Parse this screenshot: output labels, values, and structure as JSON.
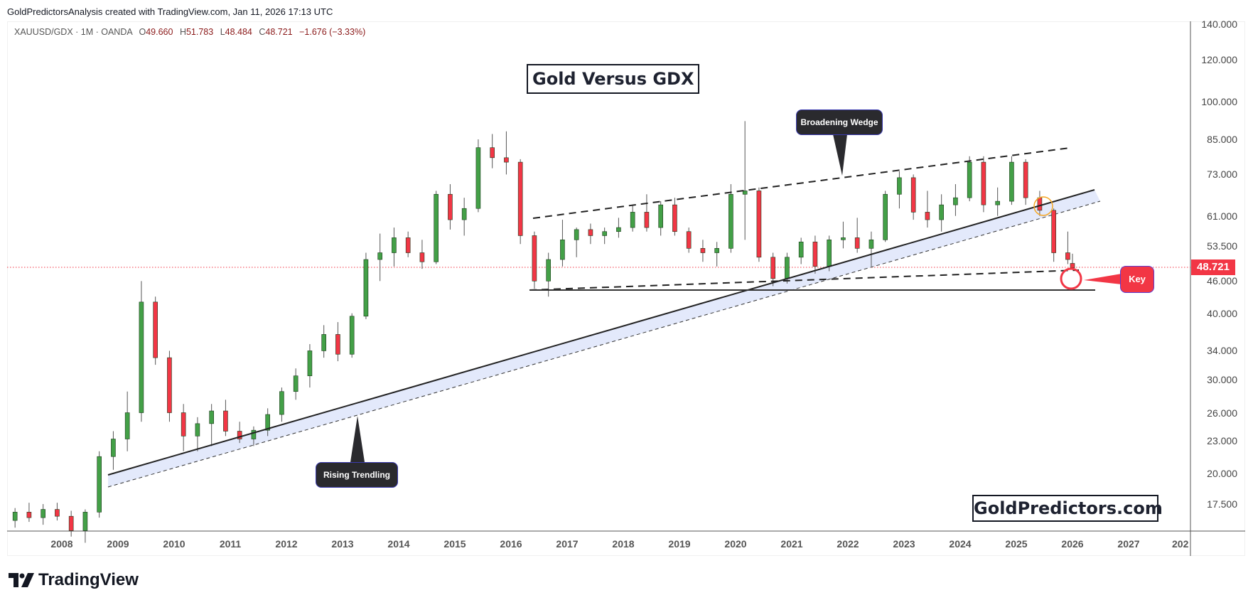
{
  "attribution": "GoldPredictorsAnalysis created with TradingView.com, Jan 11, 2026 17:13 UTC",
  "legend": {
    "symbol": "XAUUSD/GDX · 1M · OANDA",
    "open_label": "O",
    "open": "49.660",
    "high_label": "H",
    "high": "51.783",
    "low_label": "L",
    "low": "48.484",
    "close_label": "C",
    "close": "48.721",
    "change": "−1.676 (−3.33%)"
  },
  "annotations": {
    "title": "Gold Versus GDX",
    "brand": "GoldPredictors.com",
    "broadening_wedge": "Broadening Wedge",
    "rising_trendline": "Rising Trendling",
    "key": "Key"
  },
  "price_axis": {
    "labels": [
      "140.000",
      "120.000",
      "100.000",
      "85.000",
      "73.000",
      "61.000",
      "53.500",
      "46.000",
      "40.000",
      "34.000",
      "30.000",
      "26.000",
      "23.000",
      "20.000",
      "17.500"
    ],
    "values": [
      140,
      120,
      100,
      85,
      73,
      61,
      53.5,
      46,
      40,
      34,
      30,
      26,
      23,
      20,
      17.5
    ],
    "last_price": "48.721"
  },
  "time_axis": {
    "labels": [
      "2008",
      "2009",
      "2010",
      "2011",
      "2012",
      "2013",
      "2014",
      "2015",
      "2016",
      "2017",
      "2018",
      "2019",
      "2020",
      "2021",
      "2022",
      "2023",
      "2024",
      "2025",
      "2026",
      "2027",
      "202"
    ]
  },
  "footer": {
    "logo_text": "TradingView"
  },
  "colors": {
    "up": "#43a047",
    "down": "#f23645",
    "last_price": "#f23645",
    "trend_band": "#e3e9fb",
    "highlight_circle": "#f5a623",
    "key_circle": "#f23645"
  },
  "chart_data": {
    "type": "candlestick",
    "title": "Gold Versus GDX",
    "symbol": "XAUUSD/GDX",
    "interval": "1M",
    "scale": "log",
    "ylim": [
      15.5,
      142
    ],
    "x_range": [
      "2007-03",
      "2028-01"
    ],
    "yticks": [
      140,
      120,
      100,
      85,
      73,
      61,
      53.5,
      46,
      40,
      34,
      30,
      26,
      23,
      20,
      17.5
    ],
    "last": 48.721,
    "candles_approx": [
      [
        "2007-03",
        16.3,
        17.2,
        15.8,
        16.9
      ],
      [
        "2007-06",
        16.9,
        17.6,
        16.2,
        16.5
      ],
      [
        "2007-09",
        16.5,
        17.5,
        16.0,
        17.1
      ],
      [
        "2007-12",
        17.1,
        17.6,
        16.3,
        16.6
      ],
      [
        "2008-03",
        16.6,
        17.0,
        15.2,
        15.6
      ],
      [
        "2008-06",
        15.6,
        17.1,
        14.8,
        16.9
      ],
      [
        "2008-09",
        16.9,
        22.0,
        16.5,
        21.5
      ],
      [
        "2008-12",
        21.5,
        24.0,
        20.3,
        23.2
      ],
      [
        "2009-03",
        23.2,
        28.5,
        22.0,
        26.0
      ],
      [
        "2009-06",
        26.0,
        46.0,
        25.0,
        42.0
      ],
      [
        "2009-09",
        42.0,
        43.0,
        32.0,
        33.0
      ],
      [
        "2009-12",
        33.0,
        34.0,
        25.0,
        26.0
      ],
      [
        "2010-03",
        26.0,
        27.0,
        22.0,
        23.5
      ],
      [
        "2010-06",
        23.5,
        25.5,
        22.0,
        24.8
      ],
      [
        "2010-09",
        24.8,
        27.0,
        22.5,
        26.2
      ],
      [
        "2010-12",
        26.2,
        27.5,
        23.5,
        24.0
      ],
      [
        "2011-03",
        24.0,
        25.0,
        22.8,
        23.2
      ],
      [
        "2011-06",
        23.2,
        24.5,
        22.5,
        24.1
      ],
      [
        "2011-09",
        24.1,
        26.5,
        23.5,
        25.8
      ],
      [
        "2011-12",
        25.8,
        29.0,
        25.0,
        28.5
      ],
      [
        "2012-03",
        28.5,
        31.5,
        27.5,
        30.5
      ],
      [
        "2012-06",
        30.5,
        35.0,
        29.0,
        34.0
      ],
      [
        "2012-09",
        34.0,
        38.0,
        33.0,
        36.5
      ],
      [
        "2012-12",
        36.5,
        38.5,
        32.5,
        33.5
      ],
      [
        "2013-03",
        33.5,
        40.0,
        33.0,
        39.5
      ],
      [
        "2013-06",
        39.5,
        52.0,
        39.0,
        50.5
      ],
      [
        "2013-09",
        50.5,
        56.5,
        46.0,
        52.0
      ],
      [
        "2013-12",
        52.0,
        58.0,
        49.0,
        55.5
      ],
      [
        "2014-03",
        55.5,
        57.0,
        51.0,
        52.0
      ],
      [
        "2014-06",
        52.0,
        55.0,
        48.5,
        50.0
      ],
      [
        "2014-09",
        50.0,
        68.0,
        49.5,
        67.0
      ],
      [
        "2014-12",
        67.0,
        70.0,
        57.5,
        60.0
      ],
      [
        "2015-03",
        60.0,
        66.0,
        56.0,
        63.0
      ],
      [
        "2015-06",
        63.0,
        85.0,
        62.0,
        82.0
      ],
      [
        "2015-09",
        82.0,
        87.0,
        75.0,
        78.5
      ],
      [
        "2015-12",
        78.5,
        88.0,
        73.0,
        77.0
      ],
      [
        "2016-03",
        77.0,
        78.0,
        54.0,
        56.0
      ],
      [
        "2016-06",
        56.0,
        57.0,
        44.5,
        46.0
      ],
      [
        "2016-09",
        46.0,
        52.0,
        43.0,
        50.5
      ],
      [
        "2016-12",
        50.5,
        60.0,
        49.0,
        55.0
      ],
      [
        "2017-03",
        55.0,
        58.0,
        51.0,
        57.5
      ],
      [
        "2017-06",
        57.5,
        59.0,
        54.0,
        56.0
      ],
      [
        "2017-09",
        56.0,
        58.0,
        54.0,
        57.0
      ],
      [
        "2017-12",
        57.0,
        60.5,
        55.5,
        58.0
      ],
      [
        "2018-03",
        58.0,
        64.0,
        57.0,
        62.0
      ],
      [
        "2018-06",
        62.0,
        67.0,
        57.0,
        58.0
      ],
      [
        "2018-09",
        58.0,
        65.0,
        56.0,
        64.0
      ],
      [
        "2018-12",
        64.0,
        66.0,
        56.0,
        57.0
      ],
      [
        "2019-03",
        57.0,
        58.0,
        52.0,
        53.0
      ],
      [
        "2019-06",
        53.0,
        55.0,
        50.0,
        52.0
      ],
      [
        "2019-09",
        52.0,
        54.5,
        49.0,
        53.0
      ],
      [
        "2019-12",
        53.0,
        70.0,
        52.0,
        67.0
      ],
      [
        "2020-03",
        67.0,
        92.0,
        55.0,
        68.0
      ],
      [
        "2020-06",
        68.0,
        69.0,
        50.0,
        51.0
      ],
      [
        "2020-09",
        51.0,
        52.0,
        45.0,
        46.5
      ],
      [
        "2020-12",
        46.5,
        52.0,
        45.5,
        51.0
      ],
      [
        "2021-03",
        51.0,
        55.5,
        49.5,
        54.5
      ],
      [
        "2021-06",
        54.5,
        56.0,
        47.5,
        49.0
      ],
      [
        "2021-09",
        49.0,
        56.0,
        48.0,
        55.0
      ],
      [
        "2021-12",
        55.0,
        59.5,
        53.0,
        55.5
      ],
      [
        "2022-03",
        55.5,
        60.5,
        52.0,
        53.0
      ],
      [
        "2022-06",
        53.0,
        57.0,
        49.0,
        55.0
      ],
      [
        "2022-09",
        55.0,
        68.0,
        54.5,
        67.0
      ],
      [
        "2022-12",
        67.0,
        74.0,
        63.0,
        72.0
      ],
      [
        "2023-03",
        72.0,
        73.0,
        60.0,
        62.0
      ],
      [
        "2023-06",
        62.0,
        68.0,
        58.0,
        60.0
      ],
      [
        "2023-09",
        60.0,
        67.0,
        57.0,
        64.0
      ],
      [
        "2023-12",
        64.0,
        70.0,
        61.0,
        66.0
      ],
      [
        "2024-03",
        66.0,
        79.0,
        65.0,
        77.0
      ],
      [
        "2024-06",
        77.0,
        79.0,
        62.0,
        64.0
      ],
      [
        "2024-09",
        64.0,
        69.0,
        61.0,
        65.0
      ],
      [
        "2024-12",
        65.0,
        79.0,
        64.0,
        77.0
      ],
      [
        "2025-03",
        77.0,
        78.0,
        64.0,
        66.0
      ],
      [
        "2025-06",
        66.0,
        68.0,
        61.0,
        62.5
      ],
      [
        "2025-09",
        62.5,
        63.0,
        50.0,
        52.0
      ],
      [
        "2025-12",
        52.0,
        57.0,
        49.5,
        50.5
      ],
      [
        "2026-01",
        49.66,
        51.783,
        48.484,
        48.721
      ]
    ],
    "annotations": [
      {
        "type": "trendline",
        "name": "Rising Trendling",
        "from": [
          "2008-11",
          19.8
        ],
        "to": [
          "2026-06",
          67.5
        ],
        "style": "solid",
        "band_lower_offset": "dashed"
      },
      {
        "type": "trendline",
        "name": "Broadening Wedge upper",
        "from": [
          "2016-06",
          60.0
        ],
        "to": [
          "2026-04",
          82.0
        ],
        "style": "dashed"
      },
      {
        "type": "trendline",
        "name": "Broadening Wedge lower",
        "from": [
          "2016-05",
          44.5
        ],
        "to": [
          "2026-03",
          48.5
        ],
        "style": "dashed"
      },
      {
        "type": "horizontal",
        "name": "Support",
        "price": 44.5,
        "from": "2016-05",
        "to": "2026-06"
      },
      {
        "type": "circle",
        "name": "Breakdown",
        "at": [
          "2025-07",
          63.0
        ],
        "color": "#f5a623"
      },
      {
        "type": "circle",
        "name": "Key",
        "at": [
          "2026-01",
          46.2
        ],
        "color": "#f23645"
      }
    ]
  }
}
